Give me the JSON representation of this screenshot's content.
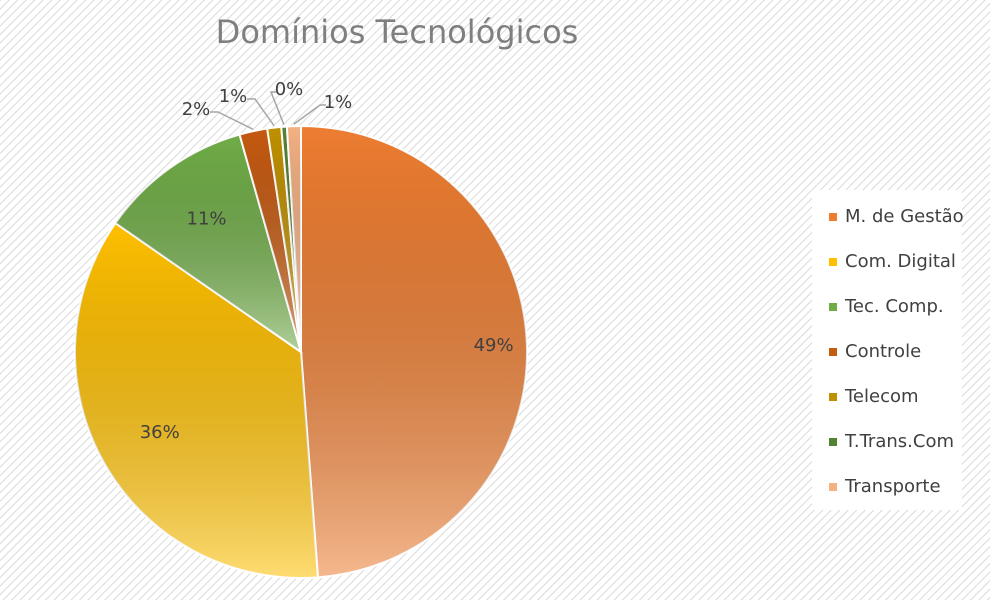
{
  "chart_data": {
    "type": "pie",
    "title": "Domínios Tecnológicos",
    "categories": [
      "M. de Gestão",
      "Com. Digital",
      "Tec. Comp.",
      "Controle",
      "Telecom",
      "T.Trans.Com",
      "Transporte"
    ],
    "values": [
      49,
      36,
      11,
      2,
      1,
      0.4,
      1
    ],
    "value_labels": [
      "49%",
      "36%",
      "11%",
      "2%",
      "1%",
      "0%",
      "1%"
    ],
    "colors": [
      "#ed7d31",
      "#ffc000",
      "#70ad47",
      "#c55a11",
      "#bf9000",
      "#548235",
      "#f4b183"
    ],
    "legend": "right"
  }
}
